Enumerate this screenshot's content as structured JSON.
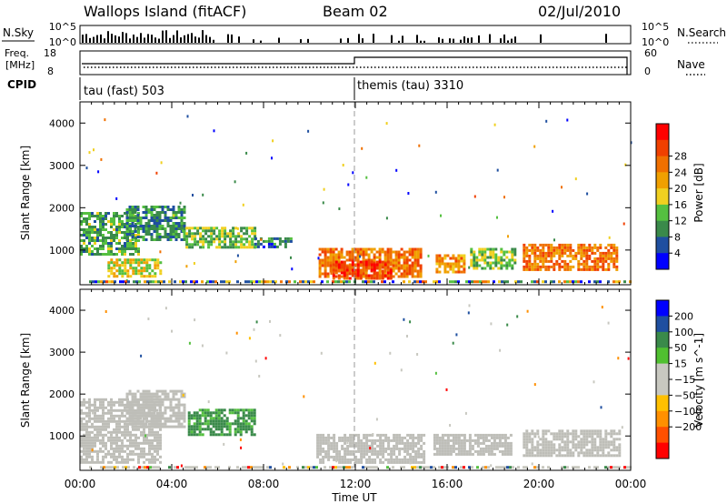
{
  "header": {
    "station": "Wallops Island (fitACF)",
    "beam": "Beam 02",
    "date": "02/Jul/2010"
  },
  "noise_panel": {
    "left_label": "N.Sky",
    "right_label": "N.Search",
    "left_ticks": [
      "10^5",
      "10^0"
    ],
    "right_ticks": [
      "10^5",
      "10^0"
    ]
  },
  "freq_panel": {
    "label_line1": "Freq.",
    "label_line2": "[MHz]",
    "left_ticks": [
      "18",
      "8"
    ],
    "right_ticks": [
      "60",
      "0"
    ],
    "right_label": "Nave"
  },
  "cpid_panel": {
    "label": "CPID",
    "segments": [
      {
        "label": "tau (fast) 503",
        "start_hour": 0
      },
      {
        "label": "themis (tau) 3310",
        "start_hour": 12
      }
    ]
  },
  "colors": {
    "power_scale": [
      "#0000ff",
      "#1f4fa0",
      "#3a8a4a",
      "#55c040",
      "#f0d020",
      "#f0a000",
      "#f07000",
      "#f04000",
      "#ff0000"
    ],
    "velocity_scale": [
      "#ff0000",
      "#ff5000",
      "#ff9000",
      "#ffc000",
      "#c8c8c0",
      "#c8c8c0",
      "#50c030",
      "#3a8a4a",
      "#1f4fa0",
      "#0000ff"
    ],
    "ground_scatter": "#bebeb8",
    "divider": "#999999"
  },
  "chart_data": [
    {
      "type": "heatmap",
      "name": "power",
      "ylabel": "Slant Range [km]",
      "xlim_hours": [
        0,
        24
      ],
      "ylim": [
        180,
        4500
      ],
      "y_ticks": [
        1000,
        2000,
        3000,
        4000
      ],
      "y_tick_labels": [
        "1000",
        "2000",
        "3000",
        "4000"
      ],
      "colorbar": {
        "label": "Power [dB]",
        "ticks": [
          4,
          8,
          12,
          16,
          20,
          24,
          28
        ],
        "tick_labels": [
          "4",
          "8",
          "12",
          "16",
          "20",
          "24",
          "28"
        ]
      },
      "regions": [
        {
          "t0": 0.0,
          "t1": 2.6,
          "r0": 900,
          "r1": 1900,
          "value": 12
        },
        {
          "t0": 1.2,
          "t1": 3.5,
          "r0": 350,
          "r1": 800,
          "value": 18
        },
        {
          "t0": 2.0,
          "t1": 4.6,
          "r0": 1250,
          "r1": 2050,
          "value": 10
        },
        {
          "t0": 4.6,
          "t1": 7.6,
          "r0": 1050,
          "r1": 1550,
          "value": 14
        },
        {
          "t0": 7.6,
          "t1": 9.2,
          "r0": 1050,
          "r1": 1300,
          "value": 8
        },
        {
          "t0": 10.4,
          "t1": 14.8,
          "r0": 350,
          "r1": 1050,
          "value": 26
        },
        {
          "t0": 11.0,
          "t1": 13.5,
          "r0": 300,
          "r1": 750,
          "value": 30
        },
        {
          "t0": 15.5,
          "t1": 16.7,
          "r0": 450,
          "r1": 900,
          "value": 24
        },
        {
          "t0": 17.0,
          "t1": 19.0,
          "r0": 550,
          "r1": 1050,
          "value": 14
        },
        {
          "t0": 19.3,
          "t1": 23.4,
          "r0": 550,
          "r1": 1150,
          "value": 26
        }
      ]
    },
    {
      "type": "heatmap",
      "name": "velocity",
      "ylabel": "Slant Range [km]",
      "xlabel": "Time UT",
      "xlim_hours": [
        0,
        24
      ],
      "x_ticks": [
        0,
        4,
        8,
        12,
        16,
        20,
        24
      ],
      "x_tick_labels": [
        "00:00",
        "04:00",
        "08:00",
        "12:00",
        "16:00",
        "20:00",
        "00:00"
      ],
      "ylim": [
        180,
        4500
      ],
      "y_ticks": [
        1000,
        2000,
        3000,
        4000
      ],
      "y_tick_labels": [
        "1000",
        "2000",
        "3000",
        "4000"
      ],
      "colorbar": {
        "label": "Velocity [m s^-1]",
        "ticks": [
          200,
          100,
          50,
          15,
          -15,
          -50,
          -100,
          -200
        ],
        "tick_labels": [
          "200",
          "100",
          "50",
          "15",
          "−15",
          "−50",
          "−100",
          "−200"
        ]
      },
      "regions": [
        {
          "t0": 0.0,
          "t1": 3.5,
          "r0": 400,
          "r1": 1900,
          "value": 0,
          "ground": true
        },
        {
          "t0": 2.0,
          "t1": 4.5,
          "r0": 1200,
          "r1": 2100,
          "value": 0,
          "ground": true
        },
        {
          "t0": 4.7,
          "t1": 7.6,
          "r0": 1050,
          "r1": 1650,
          "value": 60
        },
        {
          "t0": 10.3,
          "t1": 15.0,
          "r0": 350,
          "r1": 1050,
          "value": 0,
          "ground": true
        },
        {
          "t0": 15.4,
          "t1": 18.8,
          "r0": 550,
          "r1": 1050,
          "value": 0,
          "ground": true
        },
        {
          "t0": 19.3,
          "t1": 23.5,
          "r0": 500,
          "r1": 1150,
          "value": 0,
          "ground": true
        }
      ]
    }
  ]
}
